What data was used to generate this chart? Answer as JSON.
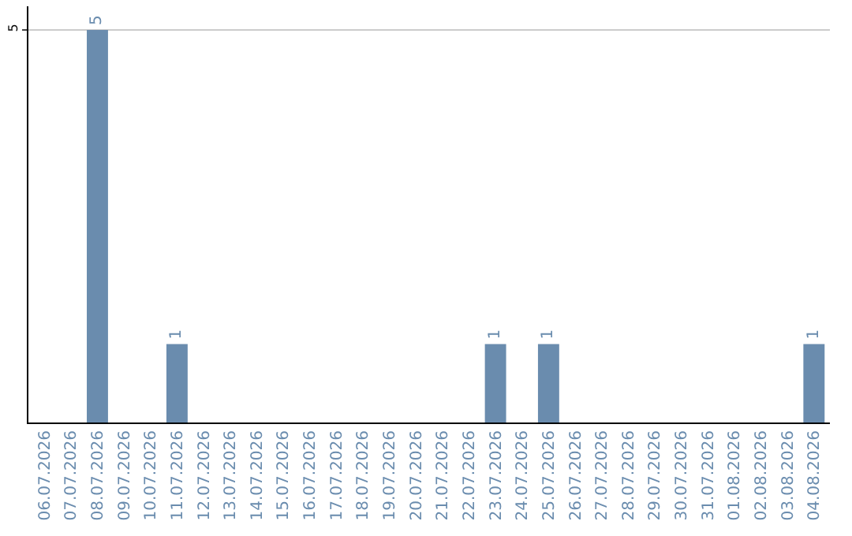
{
  "chart_data": {
    "type": "bar",
    "categories": [
      "06.07.2026",
      "07.07.2026",
      "08.07.2026",
      "09.07.2026",
      "10.07.2026",
      "11.07.2026",
      "12.07.2026",
      "13.07.2026",
      "14.07.2026",
      "15.07.2026",
      "16.07.2026",
      "17.07.2026",
      "18.07.2026",
      "19.07.2026",
      "20.07.2026",
      "21.07.2026",
      "22.07.2026",
      "23.07.2026",
      "24.07.2026",
      "25.07.2026",
      "26.07.2026",
      "27.07.2026",
      "28.07.2026",
      "29.07.2026",
      "30.07.2026",
      "31.07.2026",
      "01.08.2026",
      "02.08.2026",
      "03.08.2026",
      "04.08.2026"
    ],
    "values": [
      0,
      0,
      5,
      0,
      0,
      1,
      0,
      0,
      0,
      0,
      0,
      0,
      0,
      0,
      0,
      0,
      0,
      1,
      0,
      1,
      0,
      0,
      0,
      0,
      0,
      0,
      0,
      0,
      0,
      1
    ],
    "value_labels": [
      null,
      null,
      "5",
      null,
      null,
      "1",
      null,
      null,
      null,
      null,
      null,
      null,
      null,
      null,
      null,
      null,
      null,
      "1",
      null,
      "1",
      null,
      null,
      null,
      null,
      null,
      null,
      null,
      null,
      null,
      "1"
    ],
    "color": "#6a8cae",
    "ylim": [
      0,
      5.3
    ],
    "yticks": [
      5
    ],
    "grid": "y"
  }
}
